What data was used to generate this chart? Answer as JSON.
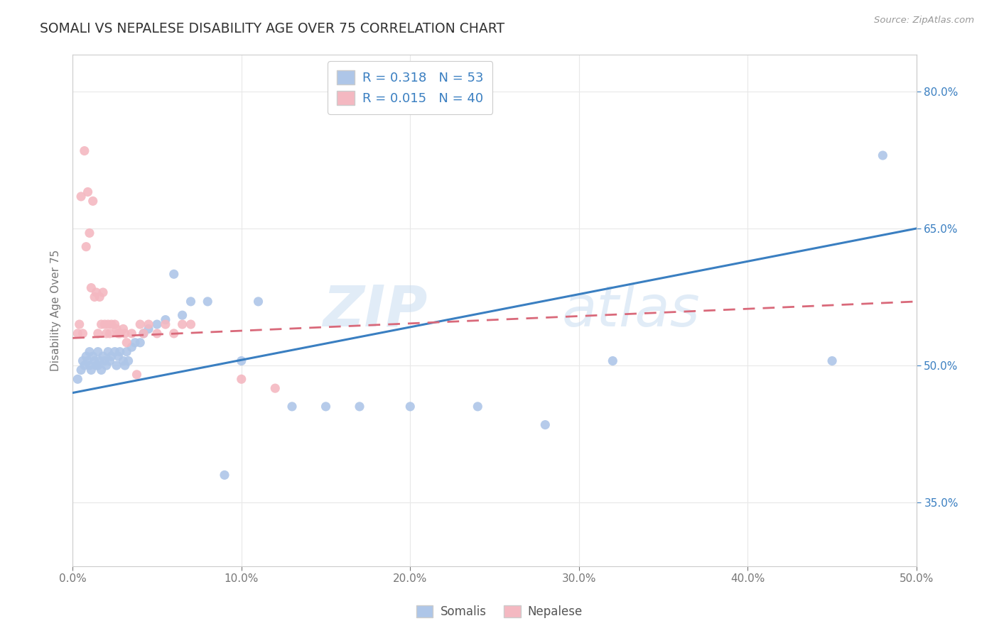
{
  "title": "SOMALI VS NEPALESE DISABILITY AGE OVER 75 CORRELATION CHART",
  "source_text": "Source: ZipAtlas.com",
  "ylabel": "Disability Age Over 75",
  "xlim": [
    0.0,
    0.5
  ],
  "ylim": [
    0.28,
    0.84
  ],
  "xtick_labels": [
    "0.0%",
    "10.0%",
    "20.0%",
    "30.0%",
    "40.0%",
    "50.0%"
  ],
  "xtick_vals": [
    0.0,
    0.1,
    0.2,
    0.3,
    0.4,
    0.5
  ],
  "ytick_labels": [
    "35.0%",
    "50.0%",
    "65.0%",
    "80.0%"
  ],
  "ytick_vals": [
    0.35,
    0.5,
    0.65,
    0.8
  ],
  "somali_color": "#aec6e8",
  "nepalese_color": "#f4b8c1",
  "somali_R": 0.318,
  "somali_N": 53,
  "nepalese_R": 0.015,
  "nepalese_N": 40,
  "somali_line_color": "#3a7fc1",
  "nepalese_line_color": "#d9697a",
  "watermark_zip": "ZIP",
  "watermark_atlas": "atlas",
  "background_color": "#ffffff",
  "grid_color": "#e8e8e8",
  "somali_x": [
    0.003,
    0.005,
    0.006,
    0.007,
    0.008,
    0.009,
    0.01,
    0.01,
    0.011,
    0.012,
    0.013,
    0.014,
    0.015,
    0.015,
    0.016,
    0.017,
    0.018,
    0.019,
    0.02,
    0.021,
    0.022,
    0.023,
    0.025,
    0.026,
    0.027,
    0.028,
    0.03,
    0.031,
    0.032,
    0.033,
    0.035,
    0.037,
    0.04,
    0.042,
    0.045,
    0.05,
    0.055,
    0.06,
    0.065,
    0.07,
    0.08,
    0.09,
    0.1,
    0.11,
    0.13,
    0.15,
    0.17,
    0.2,
    0.24,
    0.28,
    0.32,
    0.45,
    0.48
  ],
  "somali_y": [
    0.485,
    0.495,
    0.505,
    0.5,
    0.51,
    0.505,
    0.5,
    0.515,
    0.495,
    0.51,
    0.505,
    0.5,
    0.515,
    0.5,
    0.505,
    0.495,
    0.51,
    0.505,
    0.5,
    0.515,
    0.505,
    0.51,
    0.515,
    0.5,
    0.51,
    0.515,
    0.505,
    0.5,
    0.515,
    0.505,
    0.52,
    0.525,
    0.525,
    0.535,
    0.54,
    0.545,
    0.55,
    0.6,
    0.555,
    0.57,
    0.57,
    0.38,
    0.505,
    0.57,
    0.455,
    0.455,
    0.455,
    0.455,
    0.455,
    0.435,
    0.505,
    0.505,
    0.73
  ],
  "nepalese_x": [
    0.003,
    0.004,
    0.005,
    0.006,
    0.007,
    0.008,
    0.009,
    0.01,
    0.011,
    0.012,
    0.013,
    0.014,
    0.015,
    0.016,
    0.017,
    0.018,
    0.019,
    0.02,
    0.021,
    0.022,
    0.023,
    0.025,
    0.026,
    0.027,
    0.028,
    0.03,
    0.031,
    0.032,
    0.035,
    0.038,
    0.04,
    0.042,
    0.045,
    0.05,
    0.055,
    0.06,
    0.065,
    0.07,
    0.1,
    0.12
  ],
  "nepalese_y": [
    0.535,
    0.545,
    0.685,
    0.535,
    0.735,
    0.63,
    0.69,
    0.645,
    0.585,
    0.68,
    0.575,
    0.58,
    0.535,
    0.575,
    0.545,
    0.58,
    0.545,
    0.535,
    0.545,
    0.535,
    0.545,
    0.545,
    0.54,
    0.535,
    0.535,
    0.54,
    0.535,
    0.525,
    0.535,
    0.49,
    0.545,
    0.535,
    0.545,
    0.535,
    0.545,
    0.535,
    0.545,
    0.545,
    0.485,
    0.475
  ]
}
